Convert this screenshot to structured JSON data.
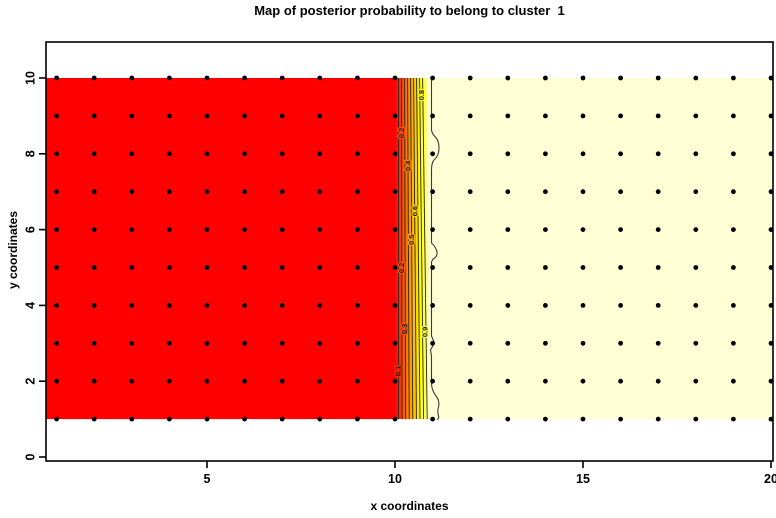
{
  "chart_data": {
    "type": "heatmap",
    "title": "Map of posterior probability to belong to cluster  1",
    "xlabel": "x coordinates",
    "ylabel": "y coordinates",
    "x_ticks": [
      5,
      10,
      15,
      20
    ],
    "y_ticks": [
      0,
      2,
      4,
      6,
      8,
      10
    ],
    "grid_markers": {
      "x_from": 1,
      "x_to": 20,
      "y_from": 1,
      "y_to": 10,
      "step": 1,
      "marker": "filled-dot",
      "color": "#000000"
    },
    "regions": [
      {
        "name": "low probability region (p < 0.1)",
        "x_from": 1,
        "x_to": 10,
        "y_from": 1,
        "y_to": 10,
        "color": "#FF0000"
      },
      {
        "name": "transition band with contour lines",
        "x_from": 10,
        "x_to": 11,
        "y_from": 1,
        "y_to": 10
      },
      {
        "name": "high probability region (p > 0.9)",
        "x_from": 11,
        "x_to": 20,
        "y_from": 1,
        "y_to": 10,
        "color": "#FFFFD5"
      }
    ],
    "contour_levels": [
      0.1,
      0.2,
      0.3,
      0.4,
      0.5,
      0.6,
      0.7,
      0.8,
      0.9
    ],
    "contour_labels": [
      {
        "level": "0.8",
        "y": 9.55
      },
      {
        "level": "0.2",
        "y": 8.55
      },
      {
        "level": "0.4",
        "y": 7.68
      },
      {
        "level": "0.6",
        "y": 6.49
      },
      {
        "level": "0.5",
        "y": 5.73
      },
      {
        "level": "0.2",
        "y": 4.99
      },
      {
        "level": "0.3",
        "y": 3.38
      },
      {
        "level": "0.9",
        "y": 3.3
      },
      {
        "level": "0.1",
        "y": 2.27
      }
    ],
    "colors": {
      "low": "#FF0000",
      "high": "#FFFFD5",
      "band": [
        "#FF0000",
        "#FF2A00",
        "#FF5500",
        "#FF8000",
        "#FFAA00",
        "#FFD500",
        "#FFFF00",
        "#FFFF55",
        "#FFFFD5"
      ],
      "marker": "#000000",
      "contour_line": "#262626",
      "outer_contour_line": "#3a3a3a"
    },
    "legend": "none",
    "grid": "off"
  }
}
